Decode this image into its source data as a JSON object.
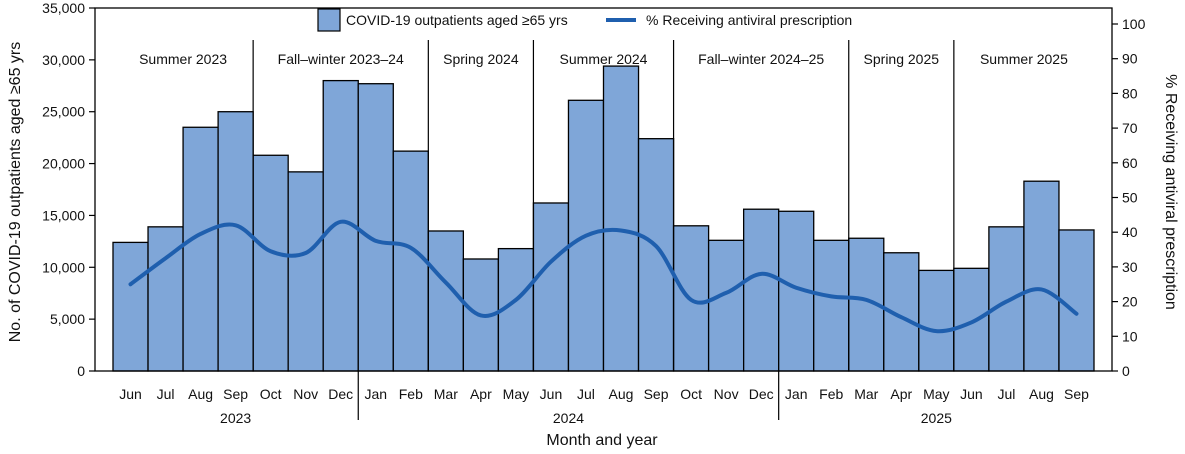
{
  "chart_data": {
    "type": "bar",
    "xlabel": "Month and year",
    "ylabel_left": "No. of COVID-19 outpatients aged ≥65 yrs",
    "ylabel_right": "% Receiving antiviral prescription",
    "ylim_left": [
      0,
      35000
    ],
    "ylim_right": [
      0,
      100
    ],
    "yticks_left": [
      "0",
      "5,000",
      "10,000",
      "15,000",
      "20,000",
      "25,000",
      "30,000",
      "35,000"
    ],
    "yticks_right": [
      "0",
      "10",
      "20",
      "30",
      "40",
      "50",
      "60",
      "70",
      "80",
      "90",
      "100"
    ],
    "categories": [
      "Jun",
      "Jul",
      "Aug",
      "Sep",
      "Oct",
      "Nov",
      "Dec",
      "Jan",
      "Feb",
      "Mar",
      "Apr",
      "May",
      "Jun",
      "Jul",
      "Aug",
      "Sep",
      "Oct",
      "Nov",
      "Dec",
      "Jan",
      "Feb",
      "Mar",
      "Apr",
      "May",
      "Jun",
      "Jul",
      "Aug",
      "Sep"
    ],
    "years": [
      {
        "label": "2023",
        "start": 0,
        "end": 6
      },
      {
        "label": "2024",
        "start": 7,
        "end": 18
      },
      {
        "label": "2025",
        "start": 19,
        "end": 27
      }
    ],
    "seasons": [
      {
        "label": "Summer 2023",
        "start": 0,
        "end": 3
      },
      {
        "label": "Fall–winter 2023–24",
        "start": 4,
        "end": 8
      },
      {
        "label": "Spring 2024",
        "start": 9,
        "end": 11
      },
      {
        "label": "Summer 2024",
        "start": 12,
        "end": 15
      },
      {
        "label": "Fall–winter 2024–25",
        "start": 16,
        "end": 20
      },
      {
        "label": "Spring 2025",
        "start": 21,
        "end": 23
      },
      {
        "label": "Summer 2025",
        "start": 24,
        "end": 27
      }
    ],
    "series": [
      {
        "name": "COVID-19 outpatients aged ≥65 yrs",
        "type": "bar",
        "axis": "left",
        "color": "#7fa6d8",
        "values": [
          12400,
          13900,
          23500,
          25000,
          20800,
          19200,
          28000,
          27700,
          21200,
          13500,
          10800,
          11800,
          16200,
          26100,
          29400,
          22400,
          14000,
          12600,
          15600,
          15400,
          12600,
          12800,
          11400,
          9700,
          9900,
          13900,
          18300,
          13600
        ]
      },
      {
        "name": "% Receiving antiviral prescription",
        "type": "line",
        "axis": "right",
        "color": "#1f5fae",
        "values": [
          25,
          32.5,
          39.5,
          42,
          34.5,
          34,
          43,
          37.5,
          35.5,
          25.5,
          16,
          20.5,
          31.5,
          39,
          40.5,
          36,
          20.5,
          22.5,
          28,
          24,
          21.5,
          20.5,
          15.5,
          11.5,
          14,
          20,
          23.5,
          16.5
        ]
      }
    ],
    "legend_position": "top-center",
    "grid": false
  }
}
